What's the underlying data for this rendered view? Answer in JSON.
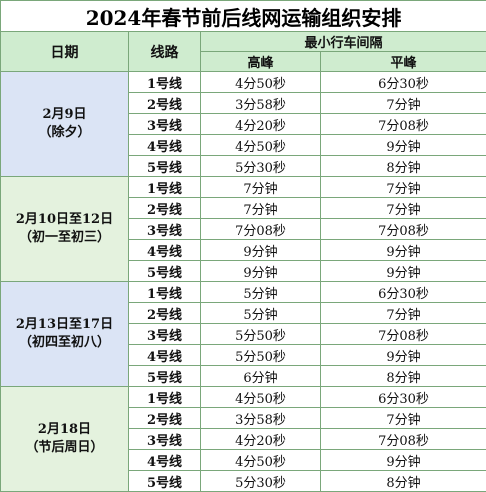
{
  "title": "2024年春节前后线网运输组织安排",
  "header": {
    "date": "日期",
    "line": "线路",
    "interval": "最小行车间隔",
    "peak": "高峰",
    "offpeak": "平峰"
  },
  "groups": [
    {
      "date_line1": "2月9日",
      "date_line2": "（除夕）",
      "rows": [
        {
          "line": "1号线",
          "peak": "4分50秒",
          "offpeak": "6分30秒"
        },
        {
          "line": "2号线",
          "peak": "3分58秒",
          "offpeak": "7分钟"
        },
        {
          "line": "3号线",
          "peak": "4分20秒",
          "offpeak": "7分08秒"
        },
        {
          "line": "4号线",
          "peak": "4分50秒",
          "offpeak": "9分钟"
        },
        {
          "line": "5号线",
          "peak": "5分30秒",
          "offpeak": "8分钟"
        }
      ]
    },
    {
      "date_line1": "2月10日至12日",
      "date_line2": "（初一至初三）",
      "rows": [
        {
          "line": "1号线",
          "peak": "7分钟",
          "offpeak": "7分钟"
        },
        {
          "line": "2号线",
          "peak": "7分钟",
          "offpeak": "7分钟"
        },
        {
          "line": "3号线",
          "peak": "7分08秒",
          "offpeak": "7分08秒"
        },
        {
          "line": "4号线",
          "peak": "9分钟",
          "offpeak": "9分钟"
        },
        {
          "line": "5号线",
          "peak": "9分钟",
          "offpeak": "9分钟"
        }
      ]
    },
    {
      "date_line1": "2月13日至17日",
      "date_line2": "（初四至初八）",
      "rows": [
        {
          "line": "1号线",
          "peak": "5分钟",
          "offpeak": "6分30秒"
        },
        {
          "line": "2号线",
          "peak": "5分钟",
          "offpeak": "7分钟"
        },
        {
          "line": "3号线",
          "peak": "5分50秒",
          "offpeak": "7分08秒"
        },
        {
          "line": "4号线",
          "peak": "5分50秒",
          "offpeak": "9分钟"
        },
        {
          "line": "5号线",
          "peak": "6分钟",
          "offpeak": "8分钟"
        }
      ]
    },
    {
      "date_line1": "2月18日",
      "date_line2": "（节后周日）",
      "rows": [
        {
          "line": "1号线",
          "peak": "4分50秒",
          "offpeak": "6分30秒"
        },
        {
          "line": "2号线",
          "peak": "3分58秒",
          "offpeak": "7分钟"
        },
        {
          "line": "3号线",
          "peak": "4分20秒",
          "offpeak": "7分08秒"
        },
        {
          "line": "4号线",
          "peak": "4分50秒",
          "offpeak": "9分钟"
        },
        {
          "line": "5号线",
          "peak": "5分30秒",
          "offpeak": "8分钟"
        }
      ]
    }
  ]
}
